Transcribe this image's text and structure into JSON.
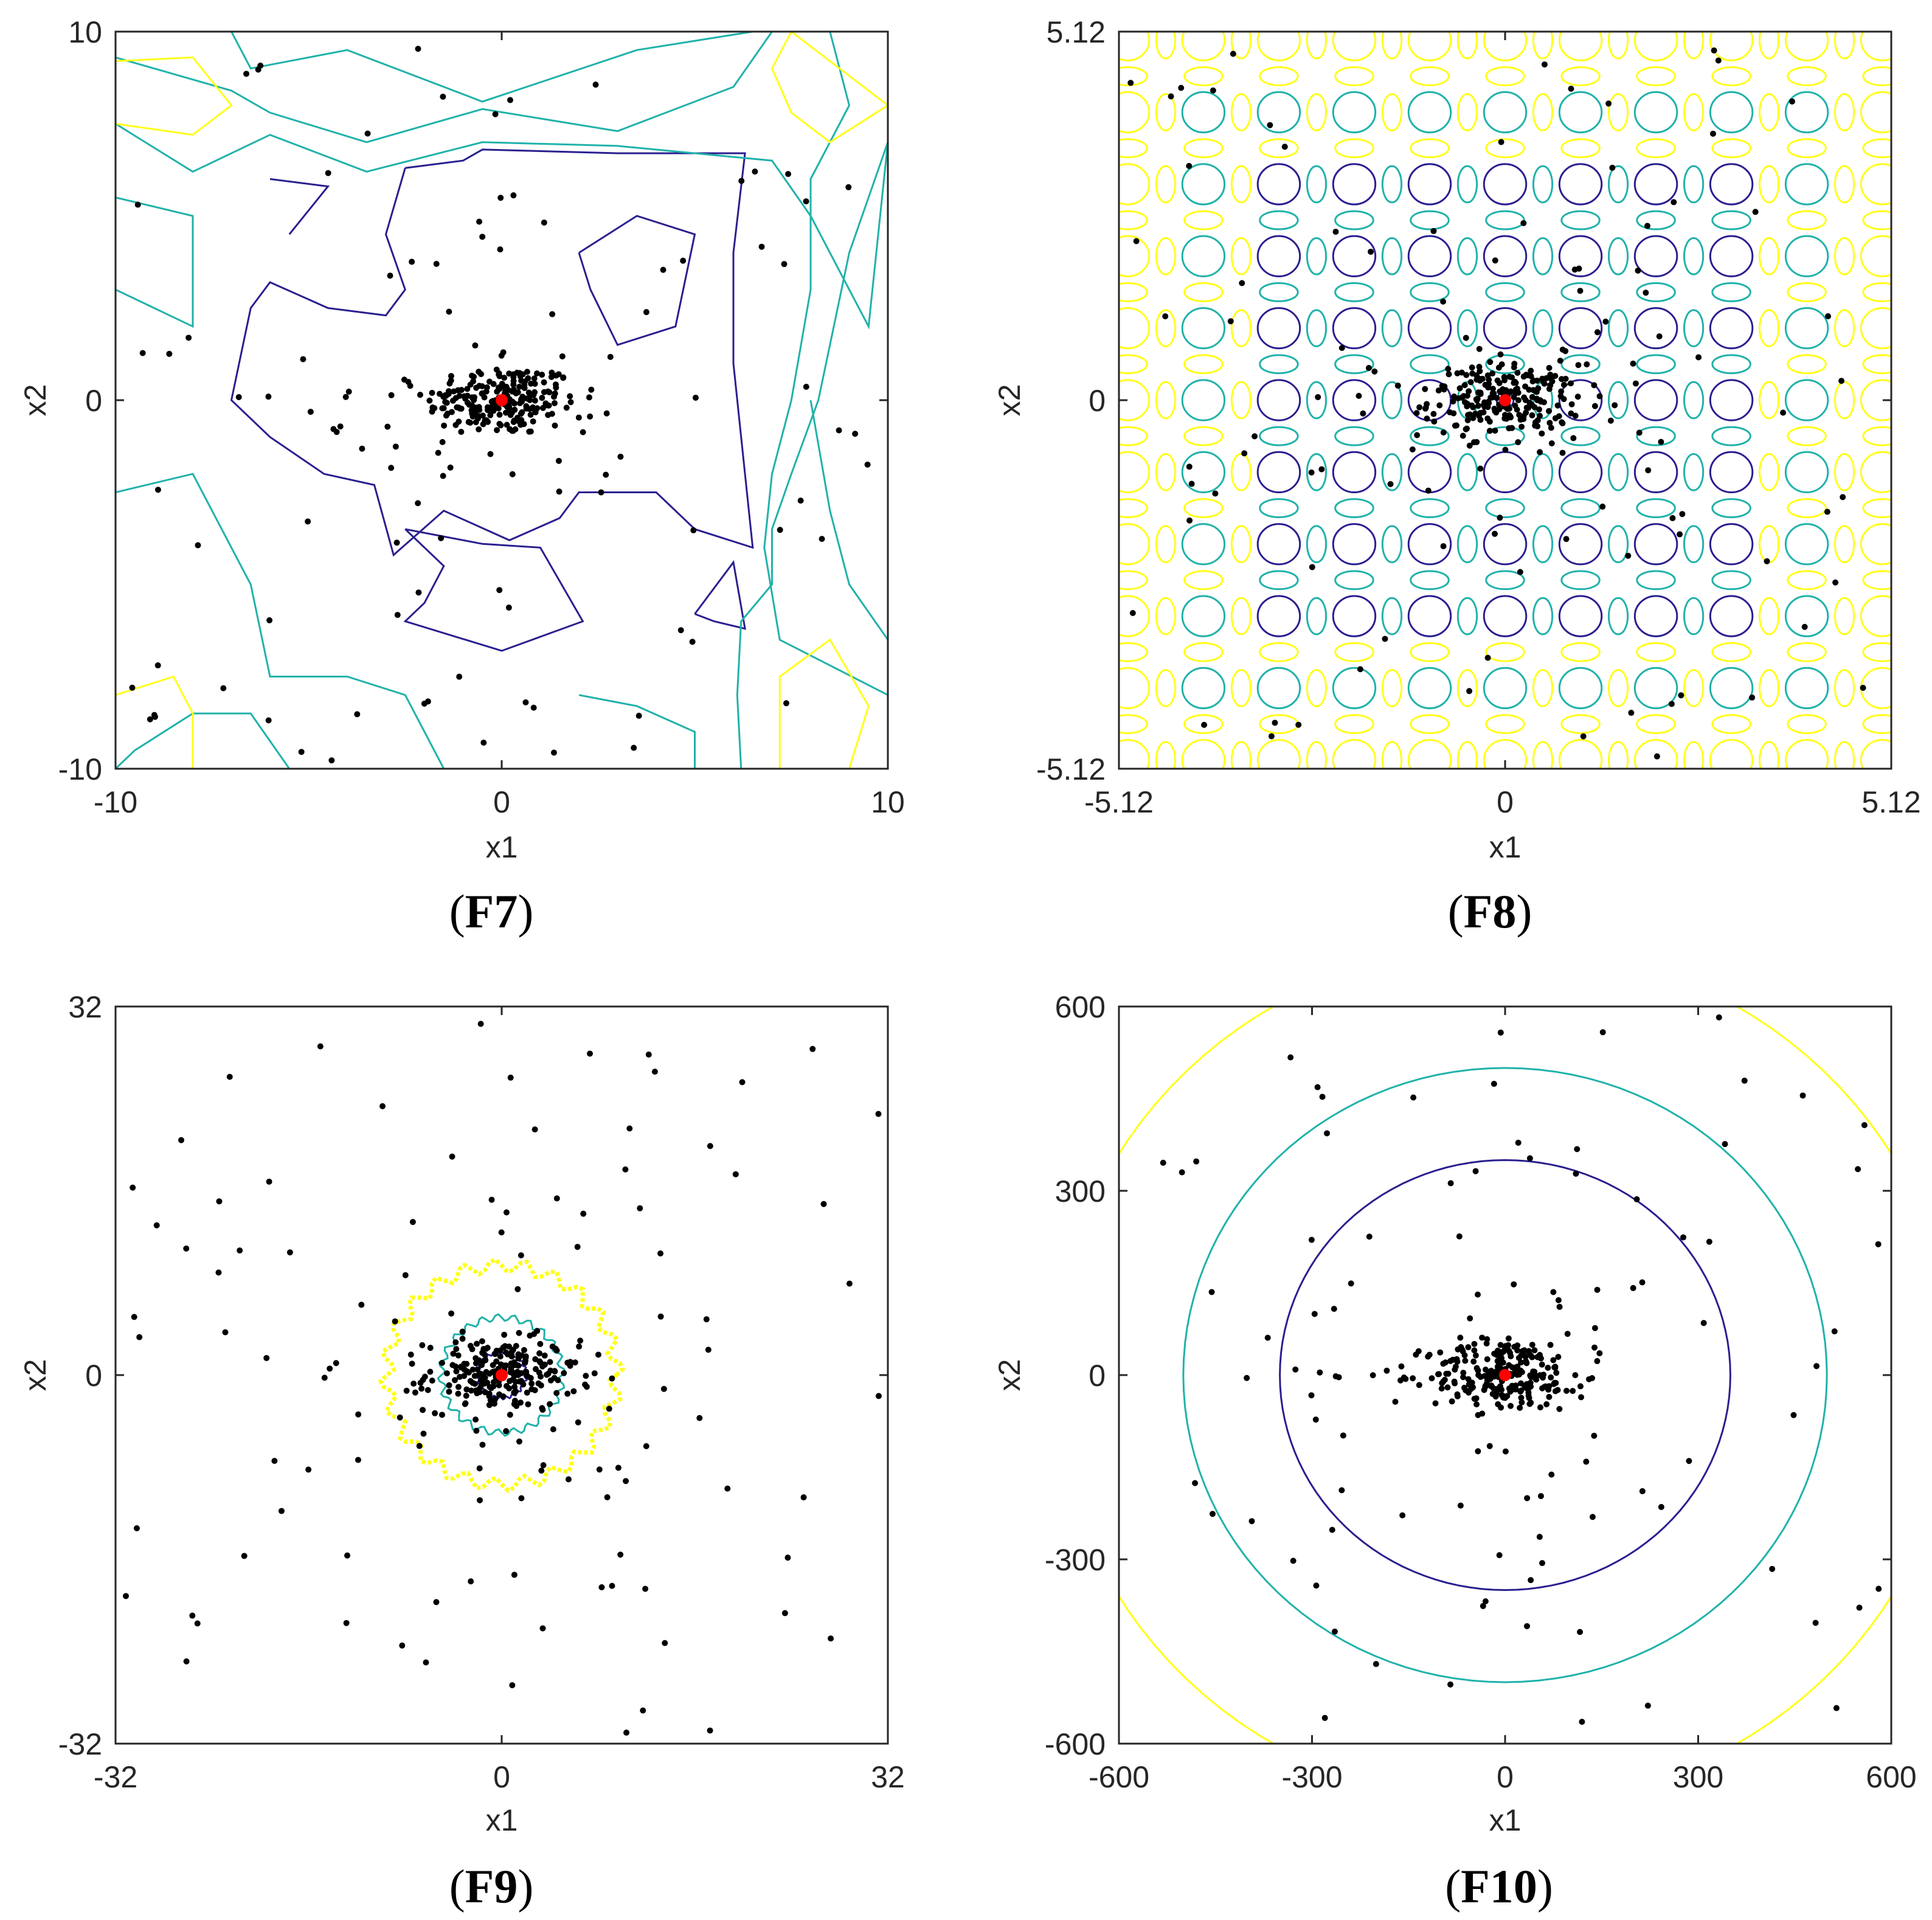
{
  "figure": {
    "panel_count": 4
  },
  "colors": {
    "level_low": "#2a1f8f",
    "level_mid": "#20b2aa",
    "level_high": "#ffff1a",
    "points": "#000000",
    "best": "#ff0000",
    "frame": "#262626"
  },
  "chart_data": [
    {
      "id": "F7",
      "type": "scatter",
      "caption_letter": "F7",
      "xlabel": "x1",
      "ylabel": "x2",
      "xlim": [
        -10,
        10
      ],
      "ylim": [
        -10,
        10
      ],
      "xticks": [
        "-10",
        "0",
        "10"
      ],
      "yticks": [
        "-10",
        "0",
        "10"
      ],
      "xtick_values": [
        -10,
        0,
        10
      ],
      "ytick_values": [
        -10,
        0,
        10
      ],
      "best_point": [
        0,
        0
      ],
      "contours": [
        {
          "level": "low",
          "points": [
            [
              -6,
              6
            ],
            [
              -4.5,
              5.8
            ],
            [
              -5.5,
              4.5
            ]
          ]
        },
        {
          "level": "low",
          "points": [
            [
              -2.5,
              6.3
            ],
            [
              -1,
              6.5
            ],
            [
              -0.5,
              6.8
            ],
            [
              3,
              6.7
            ],
            [
              6.3,
              6.7
            ],
            [
              6,
              4
            ],
            [
              6,
              1
            ],
            [
              6.5,
              -4
            ],
            [
              5,
              -3.5
            ],
            [
              4,
              -2.5
            ],
            [
              2,
              -2.5
            ],
            [
              1.5,
              -3.2
            ],
            [
              0.2,
              -3.8
            ],
            [
              -1.5,
              -3
            ],
            [
              -2.8,
              -4.2
            ],
            [
              -3.3,
              -2.3
            ],
            [
              -4.6,
              -2
            ],
            [
              -6,
              -1
            ],
            [
              -7,
              0
            ],
            [
              -6.5,
              2.5
            ],
            [
              -6,
              3.2
            ],
            [
              -4.5,
              2.5
            ],
            [
              -3,
              2.3
            ],
            [
              -2.5,
              3
            ],
            [
              -3,
              4.5
            ],
            [
              -2.5,
              6.3
            ]
          ]
        },
        {
          "level": "low",
          "points": [
            [
              -2.5,
              -3.5
            ],
            [
              -1.5,
              -4.5
            ],
            [
              -2,
              -5.5
            ],
            [
              -2.5,
              -6
            ],
            [
              0,
              -6.8
            ],
            [
              2.1,
              -6
            ],
            [
              1,
              -4
            ],
            [
              -0.5,
              -3.9
            ],
            [
              -2.5,
              -3.5
            ]
          ]
        },
        {
          "level": "low",
          "points": [
            [
              2,
              4
            ],
            [
              3.5,
              5
            ],
            [
              5,
              4.5
            ],
            [
              4.5,
              2
            ],
            [
              3,
              1.5
            ],
            [
              2.3,
              3
            ],
            [
              2,
              4
            ]
          ]
        },
        {
          "level": "low",
          "points": [
            [
              5,
              -5.8
            ],
            [
              5.5,
              -6
            ],
            [
              6.3,
              -6.2
            ],
            [
              6,
              -4.4
            ],
            [
              5,
              -5.8
            ]
          ]
        },
        {
          "level": "mid",
          "points": [
            [
              -7,
              10
            ],
            [
              -6.5,
              9
            ],
            [
              -4,
              9.5
            ],
            [
              -0.5,
              8.1
            ],
            [
              3.5,
              9.5
            ],
            [
              6.5,
              10
            ]
          ]
        },
        {
          "level": "mid",
          "points": [
            [
              -10,
              9.3
            ],
            [
              -7,
              8.4
            ],
            [
              -6,
              7.8
            ],
            [
              -3.5,
              7
            ],
            [
              -0.5,
              7.9
            ],
            [
              3,
              7.3
            ],
            [
              6,
              8.5
            ],
            [
              7,
              10
            ]
          ]
        },
        {
          "level": "mid",
          "points": [
            [
              -10,
              7.5
            ],
            [
              -8,
              6.2
            ],
            [
              -6,
              7.2
            ],
            [
              -3.5,
              6.2
            ],
            [
              -0.5,
              7
            ],
            [
              3,
              6.9
            ],
            [
              7,
              6.5
            ],
            [
              8,
              5
            ],
            [
              9,
              3
            ],
            [
              9.5,
              2
            ],
            [
              10,
              7
            ]
          ]
        },
        {
          "level": "mid",
          "points": [
            [
              -10,
              5.5
            ],
            [
              -8,
              5
            ],
            [
              -8,
              2
            ],
            [
              -9,
              2.5
            ],
            [
              -10,
              3
            ]
          ]
        },
        {
          "level": "mid",
          "points": [
            [
              -10,
              -2.5
            ],
            [
              -8,
              -2
            ],
            [
              -7,
              -4
            ],
            [
              -6.5,
              -5
            ],
            [
              -6,
              -7.5
            ],
            [
              -4,
              -7.5
            ],
            [
              -2.5,
              -8
            ],
            [
              -1.5,
              -10
            ]
          ]
        },
        {
          "level": "mid",
          "points": [
            [
              -10,
              -10
            ],
            [
              -9.5,
              -9.5
            ],
            [
              -8,
              -8.5
            ],
            [
              -6.5,
              -8.5
            ],
            [
              -5.5,
              -10
            ]
          ]
        },
        {
          "level": "mid",
          "points": [
            [
              2,
              -8
            ],
            [
              3.5,
              -8.3
            ],
            [
              5,
              -9
            ],
            [
              5,
              -10
            ]
          ]
        },
        {
          "level": "mid",
          "points": [
            [
              6.2,
              -10
            ],
            [
              6.1,
              -8
            ],
            [
              6.2,
              -6
            ],
            [
              7,
              -5
            ],
            [
              7,
              -3.5
            ],
            [
              7.5,
              -2
            ],
            [
              8.2,
              0
            ],
            [
              9,
              4
            ],
            [
              10,
              7
            ]
          ]
        },
        {
          "level": "mid",
          "points": [
            [
              8.5,
              10
            ],
            [
              9,
              8
            ],
            [
              8,
              6
            ],
            [
              8,
              3
            ],
            [
              7.5,
              0
            ],
            [
              7,
              -2
            ],
            [
              6.8,
              -4
            ],
            [
              7.2,
              -6.5
            ],
            [
              10,
              -8
            ]
          ]
        },
        {
          "level": "mid",
          "points": [
            [
              10,
              -6.5
            ],
            [
              9,
              -5
            ],
            [
              8.5,
              -3
            ],
            [
              8,
              0
            ]
          ]
        },
        {
          "level": "high",
          "points": [
            [
              -10,
              9.2
            ],
            [
              -8,
              9.3
            ],
            [
              -7,
              8
            ],
            [
              -8,
              7.2
            ],
            [
              -10,
              7.5
            ]
          ]
        },
        {
          "level": "high",
          "points": [
            [
              7,
              9
            ],
            [
              7.5,
              10
            ],
            [
              10,
              8
            ],
            [
              8.5,
              7
            ],
            [
              7.5,
              7.8
            ],
            [
              7,
              9
            ]
          ]
        },
        {
          "level": "high",
          "points": [
            [
              -10,
              -8
            ],
            [
              -8.5,
              -7.5
            ],
            [
              -8,
              -8.5
            ],
            [
              -8,
              -10
            ]
          ]
        },
        {
          "level": "high",
          "points": [
            [
              7.2,
              -7.5
            ],
            [
              8.5,
              -6.5
            ],
            [
              9.5,
              -8.3
            ],
            [
              9,
              -10
            ],
            [
              7.2,
              -10
            ],
            [
              7.2,
              -7.5
            ]
          ]
        }
      ]
    },
    {
      "id": "F8",
      "type": "scatter",
      "caption_letter": "F8",
      "xlabel": "x1",
      "ylabel": "x2",
      "xlim": [
        -5.12,
        5.12
      ],
      "ylim": [
        -5.12,
        5.12
      ],
      "xticks": [
        "-5.12",
        "0",
        "5.12"
      ],
      "yticks": [
        "-5.12",
        "0",
        "5.12"
      ],
      "xtick_values": [
        -5.12,
        0,
        5.12
      ],
      "ytick_values": [
        -5.12,
        0,
        5.12
      ],
      "best_point": [
        0,
        0
      ],
      "grid_spacing": 1,
      "contour_style": "rastrigin-grid"
    },
    {
      "id": "F9",
      "type": "scatter",
      "caption_letter": "F9",
      "xlabel": "x1",
      "ylabel": "x2",
      "xlim": [
        -32,
        32
      ],
      "ylim": [
        -32,
        32
      ],
      "xticks": [
        "-32",
        "0",
        "32"
      ],
      "yticks": [
        "-32",
        "0",
        "32"
      ],
      "xtick_values": [
        -32,
        0,
        32
      ],
      "ytick_values": [
        -32,
        0,
        32
      ],
      "best_point": [
        0,
        0
      ],
      "rings": [
        {
          "level": "low",
          "radius": 2
        },
        {
          "level": "mid",
          "radius": 5
        },
        {
          "level": "high",
          "radius": 9.5
        }
      ]
    },
    {
      "id": "F10",
      "type": "scatter",
      "caption_letter": "F10",
      "xlabel": "x1",
      "ylabel": "x2",
      "xlim": [
        -600,
        600
      ],
      "ylim": [
        -600,
        600
      ],
      "xticks": [
        "-600",
        "-300",
        "0",
        "300",
        "600"
      ],
      "yticks": [
        "-600",
        "-300",
        "0",
        "300",
        "600"
      ],
      "xtick_values": [
        -600,
        -300,
        0,
        300,
        600
      ],
      "ytick_values": [
        -600,
        -300,
        0,
        300,
        600
      ],
      "best_point": [
        0,
        0
      ],
      "rings": [
        {
          "level": "low",
          "radius": 350
        },
        {
          "level": "mid",
          "radius": 500
        },
        {
          "level": "high",
          "radius": 700
        }
      ]
    }
  ]
}
